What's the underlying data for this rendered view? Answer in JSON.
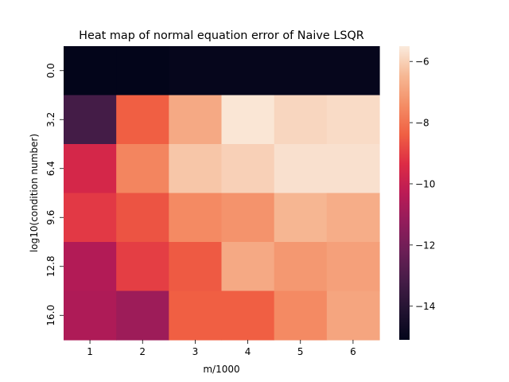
{
  "chart_data": {
    "type": "heatmap",
    "title": "Heat map of normal equation error of Naive LSQR",
    "xlabel": "m/1000",
    "ylabel": "log10(condition number)",
    "x_categories": [
      "1",
      "2",
      "3",
      "4",
      "5",
      "6"
    ],
    "y_categories": [
      "0.0",
      "3.2",
      "6.4",
      "9.6",
      "12.8",
      "16.0"
    ],
    "values": [
      [
        -15.1,
        -15.1,
        -15.0,
        -15.0,
        -15.0,
        -15.0
      ],
      [
        -13.2,
        -8.4,
        -6.8,
        -5.6,
        -5.9,
        -5.8
      ],
      [
        -9.6,
        -7.6,
        -6.2,
        -6.0,
        -5.7,
        -5.7
      ],
      [
        -9.1,
        -8.6,
        -7.5,
        -7.3,
        -6.5,
        -6.7
      ],
      [
        -10.5,
        -9.0,
        -8.5,
        -6.8,
        -7.2,
        -7.0
      ],
      [
        -10.6,
        -11.0,
        -8.4,
        -8.4,
        -7.5,
        -6.9
      ]
    ],
    "colorbar": {
      "vmin": -15.1,
      "vmax": -5.5,
      "ticks": [
        "−6",
        "−8",
        "−10",
        "−12",
        "−14"
      ],
      "tick_values": [
        -6,
        -8,
        -10,
        -12,
        -14
      ],
      "colormap": "rocket"
    }
  }
}
